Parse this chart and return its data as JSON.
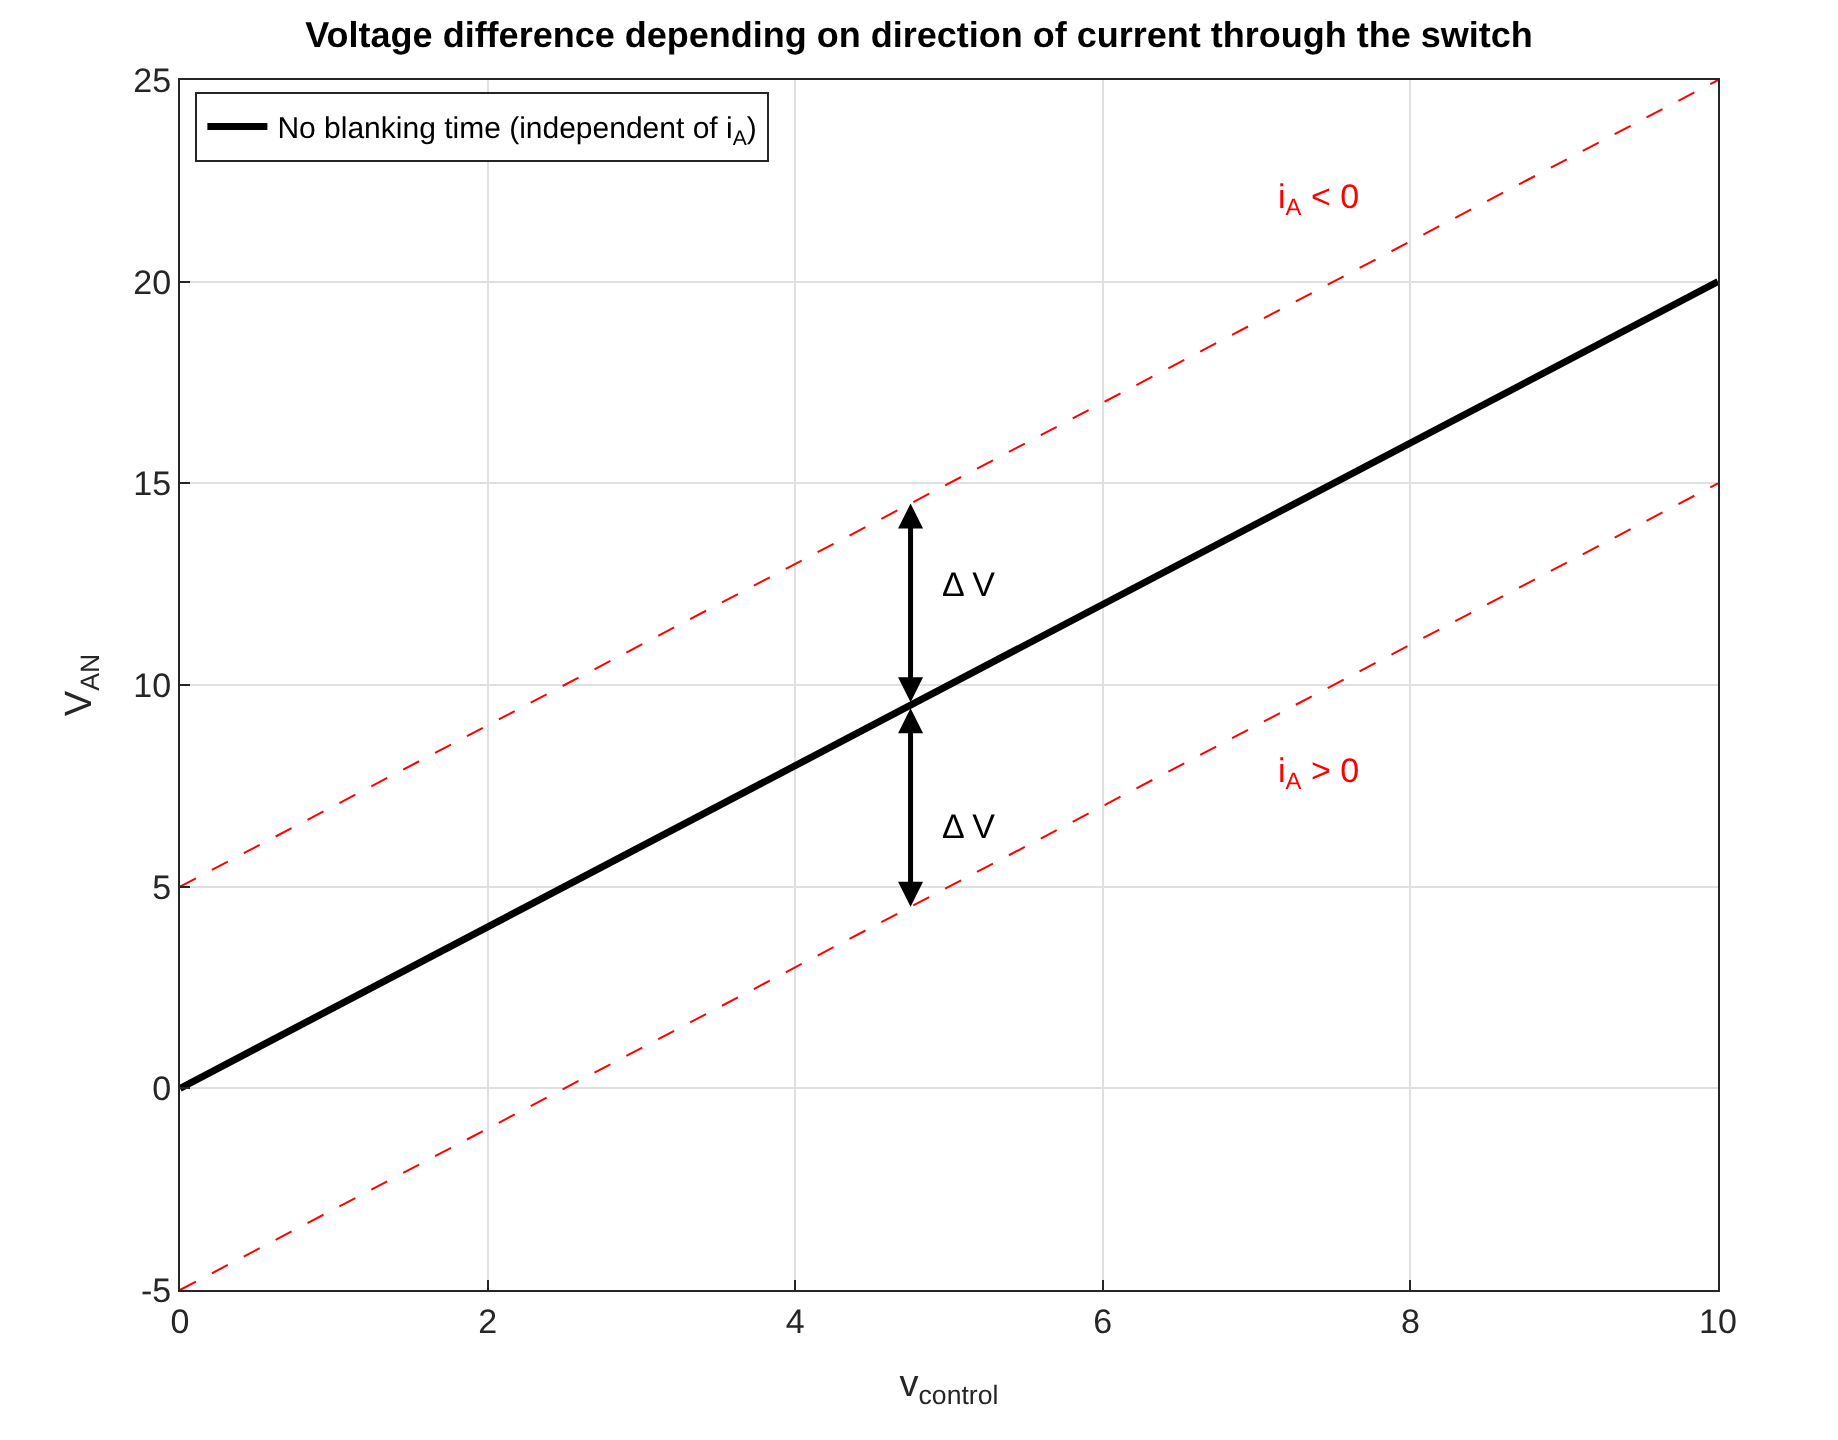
{
  "chart_data": {
    "type": "line",
    "title": "Voltage difference depending on direction of current through the switch",
    "xlabel": "v$_{control}$",
    "ylabel": "V$_{AN}$",
    "x": [
      0,
      10
    ],
    "series": [
      {
        "name": "No blanking time (independent of i$_{A}$)",
        "color": "#000000",
        "values": [
          0,
          20
        ],
        "line_style": "solid"
      },
      {
        "name": "i$_{A}$ < 0",
        "color": "#ff0000",
        "values": [
          5,
          25
        ],
        "line_style": "dashed"
      },
      {
        "name": "i$_{A}$ > 0",
        "color": "#ff0000",
        "values": [
          -5,
          15
        ],
        "line_style": "dashed"
      }
    ],
    "annotations": [
      "Δ V",
      "Δ V"
    ],
    "xlim": [
      0,
      10
    ],
    "ylim": [
      -5,
      25
    ],
    "xticks": [
      0,
      2,
      4,
      6,
      8,
      10
    ],
    "yticks": [
      -5,
      0,
      5,
      10,
      15,
      20,
      25
    ],
    "grid": true,
    "legend": "top left",
    "marker": "none"
  }
}
